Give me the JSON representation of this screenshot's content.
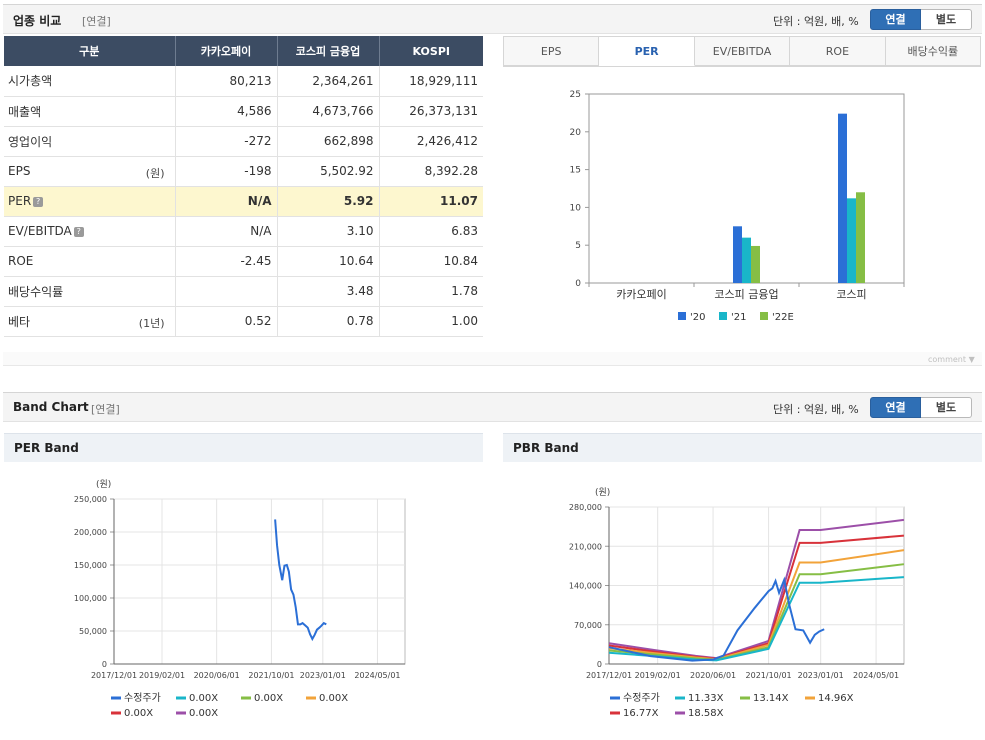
{
  "section1": {
    "title": "업종 비교",
    "sub": "[연결]",
    "unit": "단위 : 억원, 배, %",
    "toggle_on": "연결",
    "toggle_off": "별도"
  },
  "table": {
    "headers": [
      "구분",
      "카카오페이",
      "코스피 금융업",
      "KOSPI"
    ],
    "rows": [
      {
        "label": "시가총액",
        "unit": "",
        "help": false,
        "v": [
          "80,213",
          "2,364,261",
          "18,929,111"
        ],
        "neg": [
          false,
          false,
          false
        ]
      },
      {
        "label": "매출액",
        "unit": "",
        "help": false,
        "v": [
          "4,586",
          "4,673,766",
          "26,373,131"
        ],
        "neg": [
          false,
          false,
          false
        ]
      },
      {
        "label": "영업이익",
        "unit": "",
        "help": false,
        "v": [
          "-272",
          "662,898",
          "2,426,412"
        ],
        "neg": [
          true,
          false,
          false
        ]
      },
      {
        "label": "EPS",
        "unit": "(원)",
        "help": false,
        "v": [
          "-198",
          "5,502.92",
          "8,392.28"
        ],
        "neg": [
          true,
          false,
          false
        ]
      },
      {
        "label": "PER",
        "unit": "",
        "help": true,
        "v": [
          "N/A",
          "5.92",
          "11.07"
        ],
        "neg": [
          false,
          false,
          false
        ],
        "highlight": true
      },
      {
        "label": "EV/EBITDA",
        "unit": "",
        "help": true,
        "v": [
          "N/A",
          "3.10",
          "6.83"
        ],
        "neg": [
          false,
          false,
          false
        ]
      },
      {
        "label": "ROE",
        "unit": "",
        "help": false,
        "v": [
          "-2.45",
          "10.64",
          "10.84"
        ],
        "neg": [
          true,
          false,
          false
        ]
      },
      {
        "label": "배당수익률",
        "unit": "",
        "help": false,
        "v": [
          "",
          "3.48",
          "1.78"
        ],
        "neg": [
          false,
          false,
          false
        ]
      },
      {
        "label": "베타",
        "unit": "(1년)",
        "help": false,
        "v": [
          "0.52",
          "0.78",
          "1.00"
        ],
        "neg": [
          false,
          false,
          false
        ]
      }
    ]
  },
  "tabs": [
    {
      "label": "EPS",
      "active": false
    },
    {
      "label": "PER",
      "active": true
    },
    {
      "label": "EV/EBITDA",
      "active": false
    },
    {
      "label": "ROE",
      "active": false
    },
    {
      "label": "배당수익률",
      "active": false
    }
  ],
  "comment": "comment",
  "section2": {
    "title": "Band Chart",
    "sub": "[연결]",
    "unit": "단위 : 억원, 배, %",
    "toggle_on": "연결",
    "toggle_off": "별도"
  },
  "panels": {
    "per_title": "PER Band",
    "pbr_title": "PBR Band"
  },
  "colors": {
    "blue": "#2b6fd6",
    "cyan": "#19b6c9",
    "green": "#86be45",
    "orange": "#f2a33a",
    "red": "#d8323a",
    "purple": "#9c4fa8",
    "header_navy": "#3c4c63",
    "toggle_blue": "#2f6fb5",
    "highlight": "#fdf7cf"
  },
  "chart_data": [
    {
      "type": "bar",
      "categories": [
        "카카오페이",
        "코스피 금융업",
        "코스피"
      ],
      "series": [
        {
          "name": "'20",
          "values": [
            null,
            7.5,
            22.4
          ]
        },
        {
          "name": "'21",
          "values": [
            null,
            6.0,
            11.2
          ]
        },
        {
          "name": "'22E",
          "values": [
            null,
            4.9,
            12.0
          ]
        }
      ],
      "ylim": [
        0,
        25
      ],
      "yticks": [
        "0",
        "5",
        "10",
        "15",
        "20",
        "25"
      ],
      "legend": "bottom"
    },
    {
      "type": "line",
      "title": "PER Band",
      "ylabel": "(원)",
      "ylim": [
        0,
        250000
      ],
      "yticks": [
        "0",
        "50,000",
        "100,000",
        "150,000",
        "200,000",
        "250,000"
      ],
      "xticks": [
        "2017/12/01",
        "2019/02/01",
        "2020/06/01",
        "2021/10/01",
        "2023/01/01",
        "2024/05/01"
      ],
      "series": [
        {
          "name": "수정주가",
          "x": [
            "2021/11/03",
            "2021/11/20",
            "2021/12/10",
            "2022/01/05",
            "2022/01/25",
            "2022/02/15",
            "2022/03/05",
            "2022/03/25",
            "2022/04/15",
            "2022/05/05",
            "2022/05/25",
            "2022/06/15",
            "2022/07/05",
            "2022/08/01",
            "2022/08/20",
            "2022/09/10",
            "2022/09/30",
            "2022/10/20",
            "2022/11/10",
            "2022/12/01",
            "2022/12/20",
            "2023/01/10",
            "2023/02/01"
          ],
          "values": [
            219000,
            180000,
            150000,
            127000,
            149000,
            150000,
            140000,
            113000,
            105000,
            86000,
            60000,
            60000,
            62000,
            58000,
            55000,
            45000,
            38000,
            44000,
            52000,
            55000,
            58000,
            62000,
            60000
          ]
        },
        {
          "name": "0.00X",
          "values": []
        },
        {
          "name": "0.00X",
          "values": []
        },
        {
          "name": "0.00X",
          "values": []
        },
        {
          "name": "0.00X",
          "values": []
        },
        {
          "name": "0.00X",
          "values": []
        }
      ]
    },
    {
      "type": "line",
      "title": "PBR Band",
      "ylabel": "(원)",
      "ylim": [
        0,
        280000
      ],
      "yticks": [
        "0",
        "70,000",
        "140,000",
        "210,000",
        "280,000"
      ],
      "xticks": [
        "2017/12/01",
        "2019/02/01",
        "2020/06/01",
        "2021/10/01",
        "2023/01/01",
        "2024/05/01"
      ],
      "x": [
        "2017/12/01",
        "2018/12/31",
        "2019/12/31",
        "2020/06/30",
        "2021/09/30",
        "2022/06/30",
        "2022/12/31",
        "2024/12/31"
      ],
      "series": [
        {
          "name": "수정주가",
          "x": [
            "2017/12/01",
            "2018/06/01",
            "2018/12/01",
            "2019/06/01",
            "2019/12/01",
            "2020/06/01",
            "2020/09/01",
            "2021/01/01",
            "2021/06/01",
            "2021/10/01",
            "2021/11/03",
            "2021/12/01",
            "2022/01/01",
            "2022/02/15",
            "2022/04/01",
            "2022/05/25",
            "2022/08/01",
            "2022/09/30",
            "2022/11/10",
            "2022/12/20",
            "2023/02/01"
          ],
          "values": [
            30000,
            22000,
            14000,
            10000,
            6000,
            8000,
            15000,
            60000,
            100000,
            130000,
            135000,
            148000,
            127000,
            150000,
            105000,
            62000,
            60000,
            38000,
            52000,
            58000,
            62000
          ]
        },
        {
          "name": "11.33X",
          "values": [
            20000,
            14000,
            8000,
            6500,
            27000,
            145000,
            145000,
            155000
          ]
        },
        {
          "name": "13.14X",
          "values": [
            24000,
            17000,
            10000,
            7500,
            30000,
            160000,
            160000,
            178000
          ]
        },
        {
          "name": "14.96X",
          "values": [
            28000,
            19500,
            11500,
            8500,
            34000,
            181000,
            181000,
            203000
          ]
        },
        {
          "name": "16.77X",
          "values": [
            33000,
            22000,
            13000,
            9500,
            37000,
            216000,
            216000,
            229000
          ]
        },
        {
          "name": "18.58X",
          "values": [
            37000,
            25000,
            14500,
            10500,
            41000,
            239000,
            239000,
            257000
          ]
        }
      ]
    }
  ]
}
